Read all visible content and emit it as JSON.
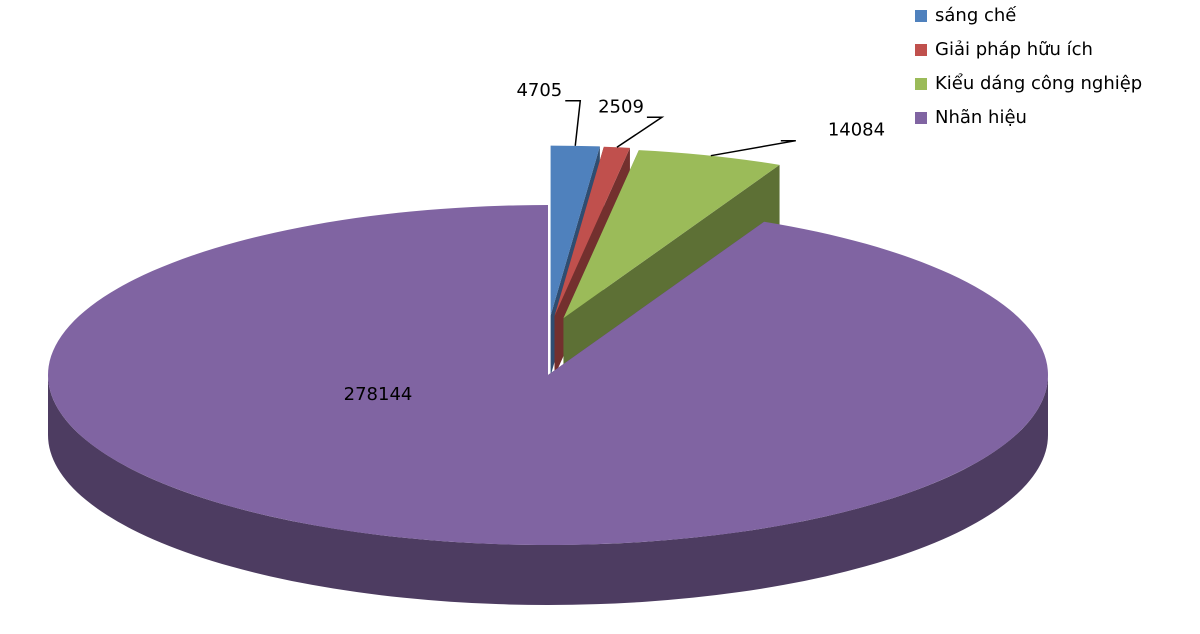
{
  "chart_data": {
    "type": "pie3d",
    "categories": [
      "sáng chế",
      "Giải pháp hữu ích",
      "Kiểu dáng công nghiệp",
      "Nhãn hiệu"
    ],
    "values": [
      4705,
      2509,
      14084,
      278144
    ],
    "colors": [
      "#4f81bd",
      "#c0504d",
      "#9bbb59",
      "#8064a2"
    ],
    "legend": "top-right"
  }
}
